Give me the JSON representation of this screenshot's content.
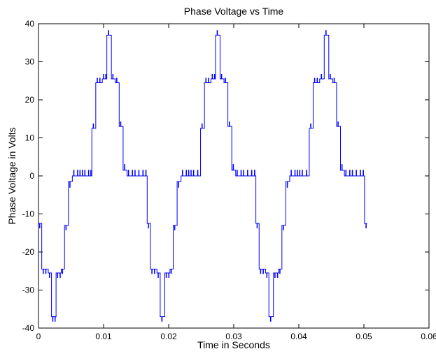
{
  "chart_data": {
    "type": "line",
    "title": "Phase Voltage vs Time",
    "xlabel": "Time in Seconds",
    "ylabel": "Phase Voltage in Volts",
    "xlim": [
      0,
      0.06
    ],
    "ylim": [
      -40,
      40
    ],
    "x_ticks": [
      0,
      0.01,
      0.02,
      0.03,
      0.04,
      0.05,
      0.06
    ],
    "y_ticks": [
      -40,
      -30,
      -20,
      -10,
      0,
      10,
      20,
      30,
      40
    ],
    "x_tick_labels": [
      "0",
      "0.01",
      "0.02",
      "0.03",
      "0.04",
      "0.05",
      "0.06"
    ],
    "y_tick_labels": [
      "-40",
      "-30",
      "-20",
      "-10",
      "0",
      "10",
      "20",
      "30",
      "40"
    ],
    "grid": false,
    "series": [
      {
        "color": "#0000ff",
        "period_seconds": 0.0167,
        "periods": 3,
        "x_end": 0.0505,
        "profile": [
          {
            "x": 0.0,
            "y": -12.5
          },
          {
            "x": 0.0005,
            "y": -24.5
          },
          {
            "x": 0.0015,
            "y": -25.5
          },
          {
            "x": 0.002,
            "y": -37.0
          },
          {
            "x": 0.0027,
            "y": -25.5
          },
          {
            "x": 0.0035,
            "y": -24.5
          },
          {
            "x": 0.004,
            "y": -13.0
          },
          {
            "x": 0.0046,
            "y": -1.5
          },
          {
            "x": 0.0052,
            "y": 0.0
          },
          {
            "x": 0.0058,
            "y": 0.0
          },
          {
            "x": 0.0069,
            "y": 0.0
          },
          {
            "x": 0.0075,
            "y": 0.0
          },
          {
            "x": 0.0082,
            "y": 12.5
          },
          {
            "x": 0.0088,
            "y": 24.5
          },
          {
            "x": 0.0098,
            "y": 25.5
          },
          {
            "x": 0.0105,
            "y": 37.0
          },
          {
            "x": 0.0112,
            "y": 25.5
          },
          {
            "x": 0.0118,
            "y": 24.5
          },
          {
            "x": 0.0124,
            "y": 13.0
          },
          {
            "x": 0.013,
            "y": 1.5
          },
          {
            "x": 0.0136,
            "y": 0.0
          },
          {
            "x": 0.0142,
            "y": 0.0
          },
          {
            "x": 0.0152,
            "y": 0.0
          },
          {
            "x": 0.0158,
            "y": 0.0
          },
          {
            "x": 0.0167,
            "y": -12.5
          }
        ]
      }
    ]
  }
}
